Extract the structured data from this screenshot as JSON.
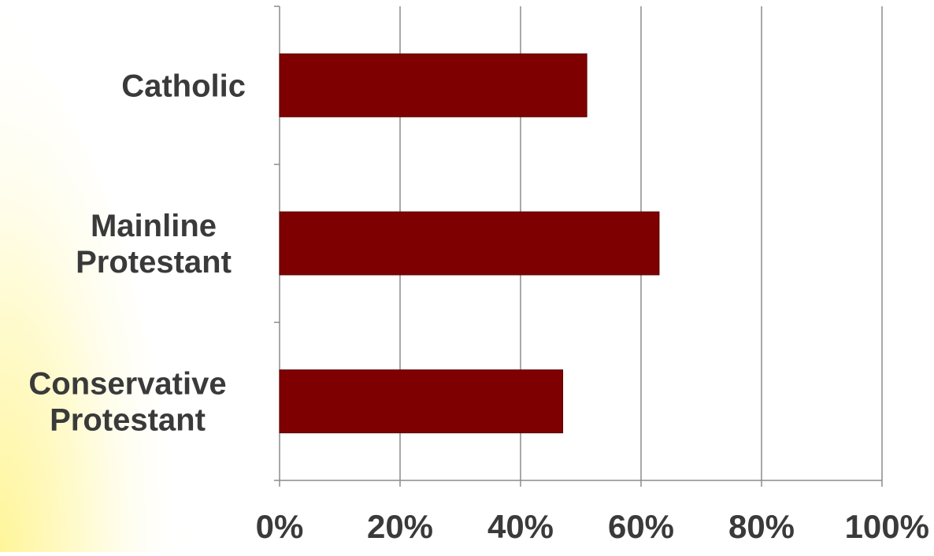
{
  "chart_data": {
    "type": "bar",
    "orientation": "horizontal",
    "categories": [
      [
        "Catholic"
      ],
      [
        "Mainline",
        "Protestant"
      ],
      [
        "Conservative",
        "Protestant"
      ]
    ],
    "values": [
      51,
      63,
      47
    ],
    "xlim": [
      0,
      100
    ],
    "xticks": [
      0,
      20,
      40,
      60,
      80,
      100
    ],
    "xtick_labels": [
      "0%",
      "20%",
      "40%",
      "60%",
      "80%",
      "100%"
    ],
    "grid": "vertical",
    "legend": "none",
    "title": "",
    "xlabel": "",
    "ylabel": ""
  },
  "colors": {
    "bar": "#7f0000",
    "bar_stroke": "#5a0000",
    "grid": "#8c8c8c",
    "axis": "#8c8c8c",
    "text": "#3a3a3a",
    "background_glow": "#fff9b0"
  }
}
